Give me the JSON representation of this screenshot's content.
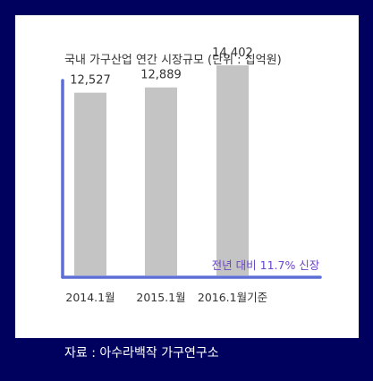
{
  "chart_data": {
    "type": "bar",
    "title": "국내 가구산업 연간 시장규모 (단위 : 십억원)",
    "categories": [
      "2014.1월",
      "2015.1월",
      "2016.1월기준"
    ],
    "values": [
      12527,
      12889,
      14402
    ],
    "value_labels": [
      "12,527",
      "12,889",
      "14,402"
    ],
    "annotation": "전년 대비 11.7% 신장",
    "xlabel": "",
    "ylabel": "",
    "ylim": [
      0,
      16000
    ],
    "grid": false,
    "bar_color": "#c4c4c4",
    "axis_color": "#5b6fd6",
    "annotation_color": "#6a45c8"
  },
  "source": "자료 : 아수라백작 가구연구소",
  "colors": {
    "background": "#00005e",
    "panel": "#ffffff"
  }
}
